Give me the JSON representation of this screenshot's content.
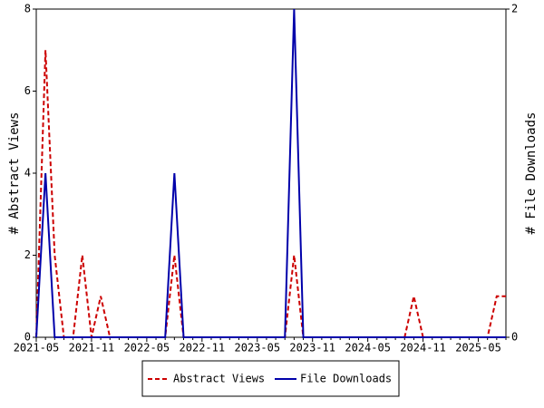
{
  "chart_data": {
    "type": "line",
    "x": [
      "2021-05",
      null,
      null,
      null,
      null,
      null,
      "2021-11",
      null,
      null,
      null,
      null,
      null,
      "2022-05",
      null,
      null,
      null,
      null,
      null,
      "2022-11",
      null,
      null,
      null,
      null,
      null,
      "2023-05",
      null,
      null,
      null,
      null,
      null,
      "2023-11",
      null,
      null,
      null,
      null,
      null,
      "2024-05",
      null,
      null,
      null,
      null,
      null,
      "2024-11",
      null,
      null,
      null,
      null,
      null,
      "2025-05",
      null,
      null,
      null
    ],
    "ylabel": "# Abstract Views",
    "y2label": "# File Downloads",
    "ylim": [
      0,
      8
    ],
    "yticks": [
      0,
      2,
      4,
      6,
      8
    ],
    "y2lim": [
      0,
      2
    ],
    "y2ticks": [
      0,
      2
    ],
    "series": [
      {
        "name": "Abstract Views",
        "color": "#cc0000",
        "dashed": true,
        "values": [
          0,
          7,
          2,
          0,
          0,
          2,
          0,
          1,
          0,
          0,
          0,
          0,
          0,
          0,
          0,
          2,
          0,
          0,
          0,
          0,
          0,
          0,
          0,
          0,
          0,
          0,
          0,
          0,
          2,
          0,
          0,
          0,
          0,
          0,
          0,
          0,
          0,
          0,
          0,
          0,
          0,
          1,
          0,
          0,
          0,
          0,
          0,
          0,
          0,
          0,
          1,
          1
        ]
      },
      {
        "name": "File Downloads",
        "color": "#0000aa",
        "dashed": false,
        "axis": "y2",
        "values": [
          0,
          1,
          0,
          0,
          0,
          0,
          0,
          0,
          0,
          0,
          0,
          0,
          0,
          0,
          0,
          1,
          0,
          0,
          0,
          0,
          0,
          0,
          0,
          0,
          0,
          0,
          0,
          0,
          2,
          0,
          0,
          0,
          0,
          0,
          0,
          0,
          0,
          0,
          0,
          0,
          0,
          0,
          0,
          0,
          0,
          0,
          0,
          0,
          0,
          0,
          0,
          0
        ]
      }
    ]
  }
}
